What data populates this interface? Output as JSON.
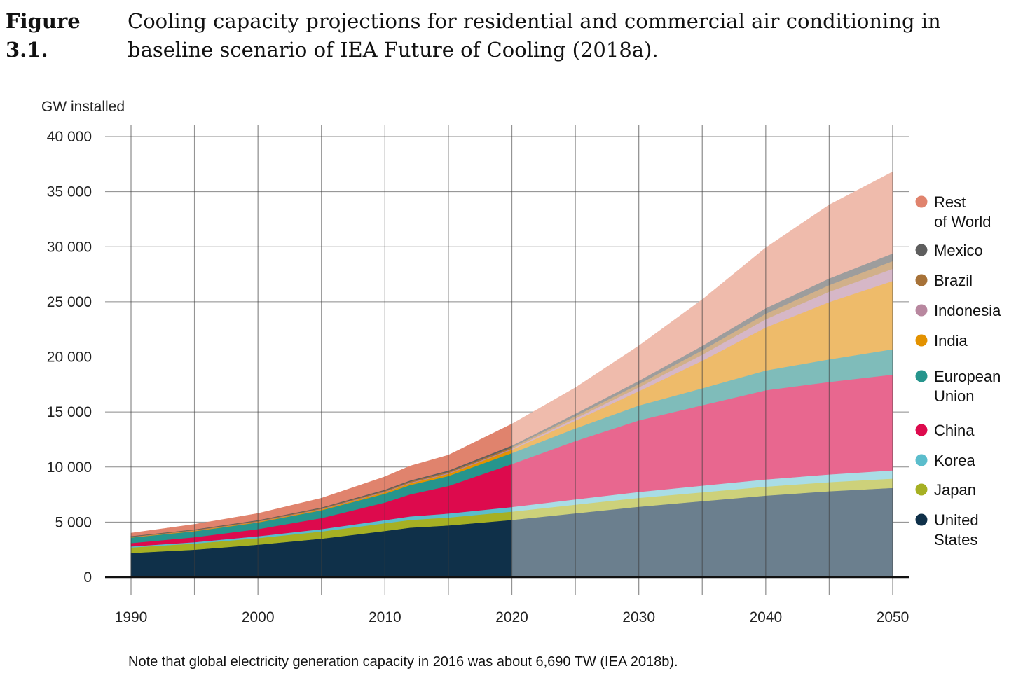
{
  "caption": {
    "label": "Figure 3.1.",
    "text": "Cooling capacity projections for residential and commercial air conditioning in baseline scenario of IEA Future of Cooling (2018a)."
  },
  "note": "Note that global electricity generation capacity in 2016 was about 6,690 TW (IEA 2018b).",
  "chart_data": {
    "type": "area",
    "stacked": true,
    "title": "",
    "ylabel": "GW installed",
    "xlabel": "",
    "ylim": [
      0,
      40000
    ],
    "xlim": [
      1990,
      2050
    ],
    "y_ticks": [
      0,
      5000,
      10000,
      15000,
      20000,
      25000,
      30000,
      35000,
      40000
    ],
    "y_tick_labels": [
      "0",
      "5 000",
      "10 000",
      "15 000",
      "20 000",
      "25 000",
      "30 000",
      "35 000",
      "40 000"
    ],
    "x_ticks": [
      1990,
      2000,
      2010,
      2020,
      2030,
      2040,
      2050
    ],
    "x_tick_labels": [
      "1990",
      "2000",
      "2010",
      "2020",
      "2030",
      "2040",
      "2050"
    ],
    "projection_start": 2020,
    "grid": true,
    "legend_position": "right",
    "x": [
      1990,
      1995,
      2000,
      2005,
      2010,
      2012,
      2015,
      2020,
      2025,
      2030,
      2035,
      2040,
      2045,
      2050
    ],
    "series": [
      {
        "name": "United States",
        "legend_label": [
          "United",
          "States"
        ],
        "color": "#0f3049",
        "projection_color": "#6b7f8e",
        "values": [
          2200,
          2500,
          2950,
          3500,
          4200,
          4500,
          4700,
          5200,
          5800,
          6400,
          6900,
          7400,
          7800,
          8100
        ]
      },
      {
        "name": "Japan",
        "legend_label": [
          "Japan"
        ],
        "color": "#a6b023",
        "projection_color": "#cdd17a",
        "values": [
          500,
          550,
          600,
          650,
          700,
          700,
          720,
          750,
          780,
          800,
          810,
          820,
          830,
          850
        ]
      },
      {
        "name": "Korea",
        "legend_label": [
          "Korea"
        ],
        "color": "#5bbdcc",
        "projection_color": "#a9dde6",
        "values": [
          100,
          130,
          170,
          220,
          280,
          320,
          360,
          420,
          480,
          540,
          600,
          650,
          700,
          750
        ]
      },
      {
        "name": "China",
        "legend_label": [
          "China"
        ],
        "color": "#dd0a4d",
        "projection_color": "#e8678f",
        "values": [
          300,
          450,
          650,
          1000,
          1600,
          2000,
          2500,
          3900,
          5300,
          6500,
          7300,
          8100,
          8400,
          8700
        ]
      },
      {
        "name": "European Union",
        "legend_label": [
          "European",
          "Union"
        ],
        "color": "#26958d",
        "projection_color": "#7fbcba",
        "values": [
          500,
          550,
          600,
          700,
          800,
          850,
          900,
          1000,
          1150,
          1350,
          1550,
          1800,
          2050,
          2300
        ]
      },
      {
        "name": "India",
        "legend_label": [
          "India"
        ],
        "color": "#e39200",
        "projection_color": "#eebb6a",
        "values": [
          30,
          40,
          60,
          80,
          120,
          150,
          200,
          300,
          700,
          1300,
          2500,
          3900,
          5200,
          6200
        ]
      },
      {
        "name": "Indonesia",
        "legend_label": [
          "Indonesia"
        ],
        "color": "#b8879f",
        "projection_color": "#d6b7c7",
        "values": [
          20,
          25,
          35,
          45,
          60,
          70,
          80,
          100,
          200,
          350,
          550,
          750,
          950,
          1100
        ]
      },
      {
        "name": "Brazil",
        "legend_label": [
          "Brazil"
        ],
        "color": "#a77238",
        "projection_color": "#d1b08a",
        "values": [
          40,
          50,
          60,
          70,
          90,
          100,
          110,
          130,
          210,
          300,
          400,
          500,
          600,
          700
        ]
      },
      {
        "name": "Mexico",
        "legend_label": [
          "Mexico"
        ],
        "color": "#5e5e5e",
        "projection_color": "#9d9d9d",
        "values": [
          40,
          50,
          60,
          70,
          90,
          100,
          110,
          150,
          230,
          300,
          400,
          500,
          600,
          700
        ]
      },
      {
        "name": "Rest of World",
        "legend_label": [
          "Rest",
          "of World"
        ],
        "color": "#e0836d",
        "projection_color": "#efbbac",
        "values": [
          270,
          450,
          600,
          830,
          1170,
          1300,
          1400,
          1950,
          2350,
          3160,
          4190,
          5480,
          6670,
          7400
        ]
      }
    ]
  }
}
